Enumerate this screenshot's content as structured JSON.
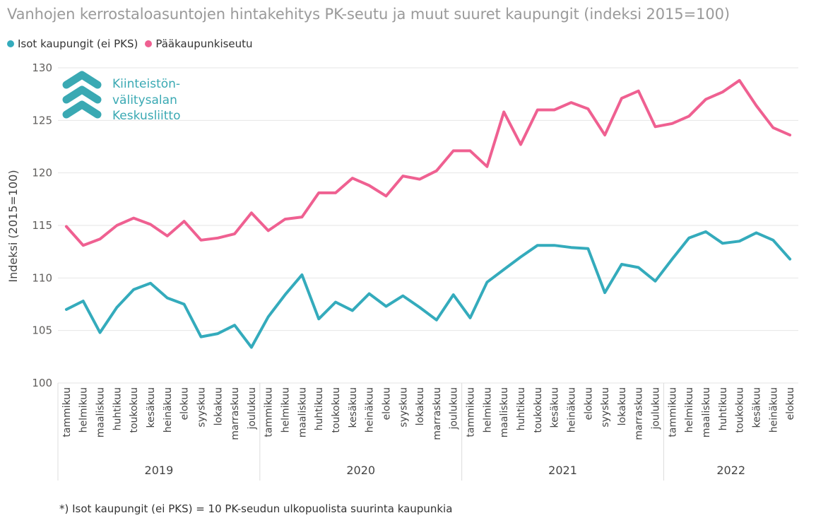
{
  "title": "Vanhojen kerrostaloasuntojen hintakehitys PK-seutu ja muut suuret kaupungit (indeksi 2015=100)",
  "footnote": "*) Isot kaupungit (ei PKS) = 10 PK-seudun ulkopuolista suurinta kaupunkia",
  "logo": {
    "lines": [
      "Kiinteistön-",
      "välitysalan",
      "Keskusliitto"
    ],
    "color": "#3aa9b3"
  },
  "chart_data": {
    "type": "line",
    "ylabel": "Indeksi (2015=100)",
    "xlabel": "",
    "ylim": [
      100,
      130
    ],
    "yticks": [
      100,
      105,
      110,
      115,
      120,
      125,
      130
    ],
    "grid": true,
    "legend_position": "top-left",
    "years": [
      {
        "label": "2019",
        "months": 12
      },
      {
        "label": "2020",
        "months": 12
      },
      {
        "label": "2021",
        "months": 12
      },
      {
        "label": "2022",
        "months": 8
      }
    ],
    "categories": [
      "tammikuu",
      "helmikuu",
      "maaliskuu",
      "huhtikuu",
      "toukokuu",
      "kesäkuu",
      "heinäkuu",
      "elokuu",
      "syyskuu",
      "lokakuu",
      "marraskuu",
      "joulukuu",
      "tammikuu",
      "helmikuu",
      "maaliskuu",
      "huhtikuu",
      "toukokuu",
      "kesäkuu",
      "heinäkuu",
      "elokuu",
      "syyskuu",
      "lokakuu",
      "marraskuu",
      "joulukuu",
      "tammikuu",
      "helmikuu",
      "maaliskuu",
      "huhtikuu",
      "toukokuu",
      "kesäkuu",
      "heinäkuu",
      "elokuu",
      "syyskuu",
      "lokakuu",
      "marraskuu",
      "joulukuu",
      "tammikuu",
      "helmikuu",
      "maaliskuu",
      "huhtikuu",
      "toukokuu",
      "kesäkuu",
      "heinäkuu",
      "elokuu"
    ],
    "series": [
      {
        "name": "Isot kaupungit (ei PKS)",
        "color": "#34abbc",
        "values": [
          107.0,
          107.8,
          104.8,
          107.2,
          108.9,
          109.5,
          108.1,
          107.5,
          104.4,
          104.7,
          105.5,
          103.4,
          106.3,
          108.4,
          110.3,
          106.1,
          107.7,
          106.9,
          108.5,
          107.3,
          108.3,
          107.2,
          106.0,
          108.4,
          106.2,
          109.6,
          110.8,
          112.0,
          113.1,
          113.1,
          112.9,
          112.8,
          108.6,
          111.3,
          111.0,
          109.7,
          111.8,
          113.8,
          114.4,
          113.3,
          113.5,
          114.3,
          113.6,
          111.8
        ]
      },
      {
        "name": "Pääkaupunkiseutu",
        "color": "#ef6091",
        "values": [
          114.9,
          113.1,
          113.7,
          115.0,
          115.7,
          115.1,
          114.0,
          115.4,
          113.6,
          113.8,
          114.2,
          116.2,
          114.5,
          115.6,
          115.8,
          118.1,
          118.1,
          119.5,
          118.8,
          117.8,
          119.7,
          119.4,
          120.2,
          122.1,
          122.1,
          120.6,
          125.8,
          122.7,
          126.0,
          126.0,
          126.7,
          126.1,
          123.6,
          127.1,
          127.8,
          124.4,
          124.7,
          125.4,
          127.0,
          127.7,
          128.8,
          126.4,
          124.3,
          123.6
        ]
      }
    ]
  }
}
